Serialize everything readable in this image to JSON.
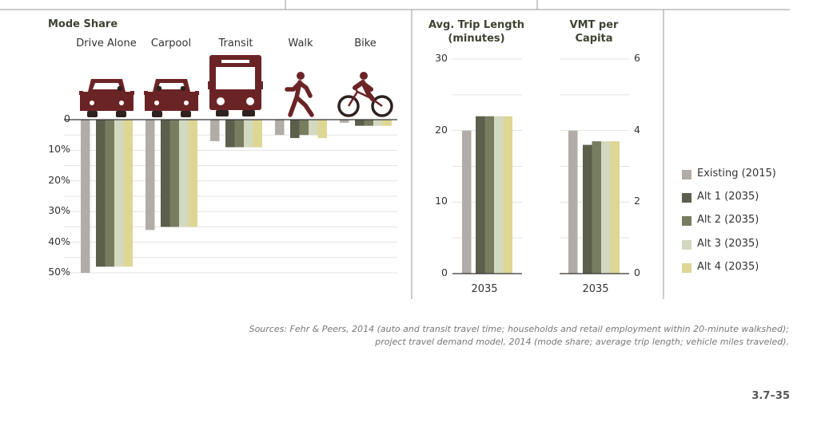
{
  "chart_data": [
    {
      "type": "bar",
      "title": "Mode Share",
      "categories": [
        "Drive Alone",
        "Carpool",
        "Transit",
        "Walk",
        "Bike"
      ],
      "icons": [
        "car-single-occupant-icon",
        "car-carpool-icon",
        "bus-icon",
        "walking-person-icon",
        "bicycle-icon"
      ],
      "y_ticks": [
        "0",
        "10%",
        "20%",
        "30%",
        "40%",
        "50%"
      ],
      "ylim": [
        0,
        50
      ],
      "y_inverted": true,
      "grid": true,
      "series": [
        {
          "name": "Existing (2015)",
          "values": [
            50,
            36,
            7,
            5,
            1
          ]
        },
        {
          "name": "Alt 1 (2035)",
          "values": [
            48,
            35,
            9,
            6,
            2
          ]
        },
        {
          "name": "Alt 2 (2035)",
          "values": [
            48,
            35,
            9,
            5,
            2
          ]
        },
        {
          "name": "Alt 3 (2035)",
          "values": [
            48,
            35,
            9,
            5,
            2
          ]
        },
        {
          "name": "Alt 4 (2035)",
          "values": [
            48,
            35,
            9,
            6,
            2
          ]
        }
      ]
    },
    {
      "type": "bar",
      "title": "Avg. Trip Length (minutes)",
      "title_lines": [
        "Avg. Trip Length",
        "(minutes)"
      ],
      "categories": [
        "2035"
      ],
      "y_ticks": [
        "0",
        "10",
        "20",
        "30"
      ],
      "ylim": [
        0,
        30
      ],
      "grid": true,
      "series": [
        {
          "name": "Existing (2015)",
          "values": [
            20
          ]
        },
        {
          "name": "Alt 1 (2035)",
          "values": [
            22
          ]
        },
        {
          "name": "Alt 2 (2035)",
          "values": [
            22
          ]
        },
        {
          "name": "Alt 3 (2035)",
          "values": [
            22
          ]
        },
        {
          "name": "Alt 4 (2035)",
          "values": [
            22
          ]
        }
      ]
    },
    {
      "type": "bar",
      "title": "VMT per Capita",
      "title_lines": [
        "VMT per",
        "Capita"
      ],
      "categories": [
        "2035"
      ],
      "y_ticks": [
        "0",
        "2",
        "4",
        "6"
      ],
      "ylim": [
        0,
        6
      ],
      "grid": true,
      "series": [
        {
          "name": "Existing (2015)",
          "values": [
            4.0
          ]
        },
        {
          "name": "Alt 1 (2035)",
          "values": [
            3.6
          ]
        },
        {
          "name": "Alt 2 (2035)",
          "values": [
            3.7
          ]
        },
        {
          "name": "Alt 3 (2035)",
          "values": [
            3.7
          ]
        },
        {
          "name": "Alt 4 (2035)",
          "values": [
            3.7
          ]
        }
      ]
    }
  ],
  "legend": {
    "placement": "right",
    "items": [
      "Existing (2015)",
      "Alt 1 (2035)",
      "Alt 2 (2035)",
      "Alt 3 (2035)",
      "Alt 4 (2035)"
    ]
  },
  "colors": {
    "series": [
      "#b1aca5",
      "#5b5f4c",
      "#787d60",
      "#d3d9c0",
      "#ded694"
    ],
    "icon": "#6b2426",
    "wheel": "#2e2220",
    "grid": "#e3e3e3",
    "axis": "#333333"
  },
  "sources": {
    "line1": "Sources: Fehr & Peers, 2014 (auto and transit travel time; households and retail employment within 20-minute walkshed);",
    "line2": "project travel demand model, 2014 (mode share; average trip length; vehicle miles traveled)."
  },
  "page_number": "3.7–35"
}
